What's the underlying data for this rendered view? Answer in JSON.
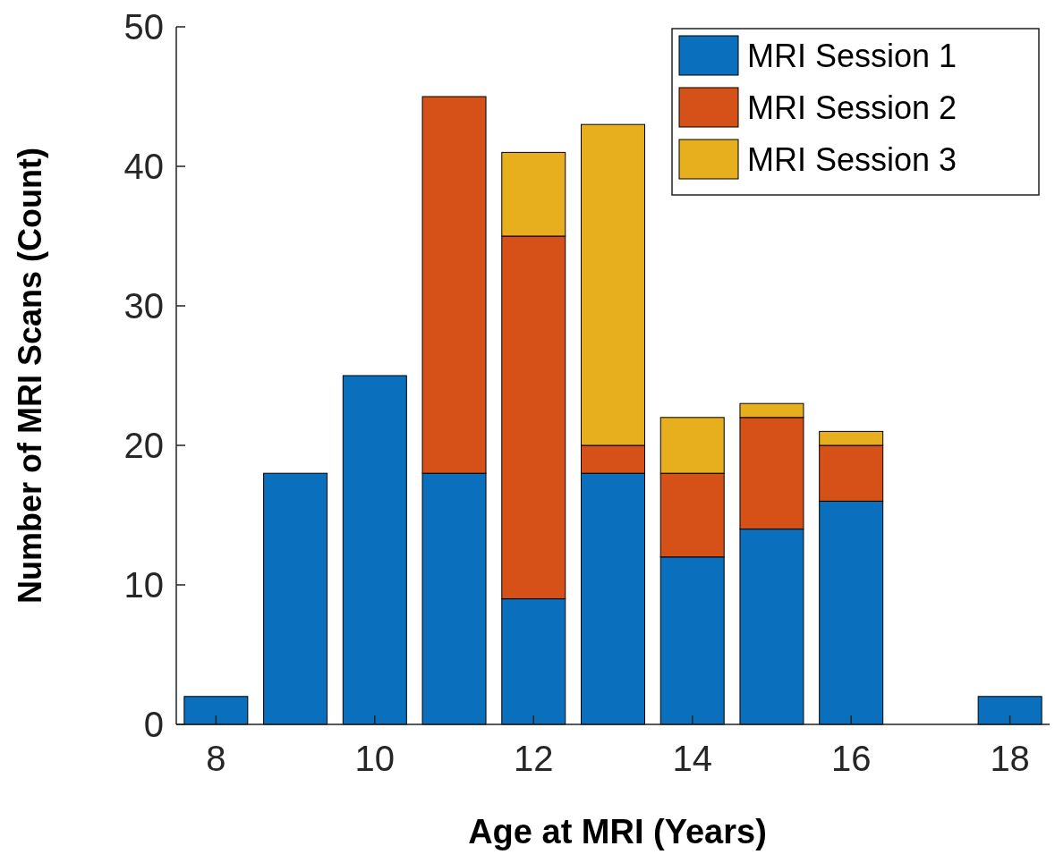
{
  "chart_data": {
    "type": "bar",
    "stacked": true,
    "xlabel": "Age at MRI (Years)",
    "ylabel": "Number of MRI Scans (Count)",
    "x": [
      8,
      9,
      10,
      11,
      12,
      13,
      14,
      15,
      16,
      17,
      18
    ],
    "series": [
      {
        "name": "MRI Session 1",
        "color": "#0a6fbd",
        "values": [
          2,
          18,
          25,
          18,
          9,
          18,
          12,
          14,
          16,
          0,
          2
        ]
      },
      {
        "name": "MRI Session 2",
        "color": "#d55117",
        "values": [
          0,
          0,
          0,
          27,
          26,
          2,
          6,
          8,
          4,
          0,
          0
        ]
      },
      {
        "name": "MRI Session 3",
        "color": "#e7ae1e",
        "values": [
          0,
          0,
          0,
          0,
          6,
          23,
          4,
          1,
          1,
          0,
          0
        ]
      }
    ],
    "xlim": [
      7.5,
      18.5
    ],
    "xticks": [
      8,
      10,
      12,
      14,
      16,
      18
    ],
    "ylim": [
      0,
      50
    ],
    "yticks": [
      0,
      10,
      20,
      30,
      40,
      50
    ],
    "legend": "top right"
  }
}
